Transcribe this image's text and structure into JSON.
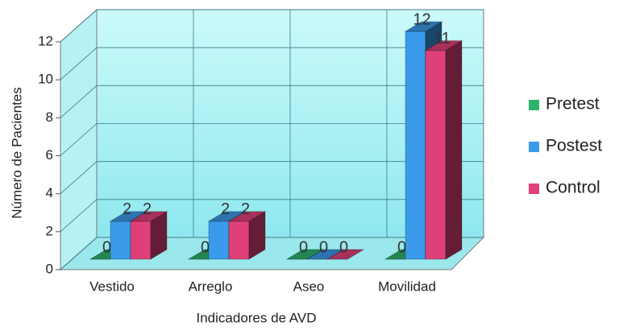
{
  "chart_data": {
    "type": "bar3d",
    "categories": [
      "Vestido",
      "Arreglo",
      "Aseo",
      "Movilidad"
    ],
    "series": [
      {
        "name": "Pretest",
        "color": "#2db36b",
        "values": [
          0,
          0,
          0,
          0
        ]
      },
      {
        "name": "Postest",
        "color": "#3a9bea",
        "values": [
          2,
          2,
          0,
          12
        ]
      },
      {
        "name": "Control",
        "color": "#e0407a",
        "values": [
          2,
          2,
          0,
          11
        ]
      }
    ],
    "ylim": [
      0,
      12
    ],
    "yticks": [
      0,
      2,
      4,
      6,
      8,
      10,
      12
    ],
    "grid": true,
    "y_label": "Número de Pacientes",
    "x_label": "Indicadores de AVD",
    "legend": "right"
  }
}
